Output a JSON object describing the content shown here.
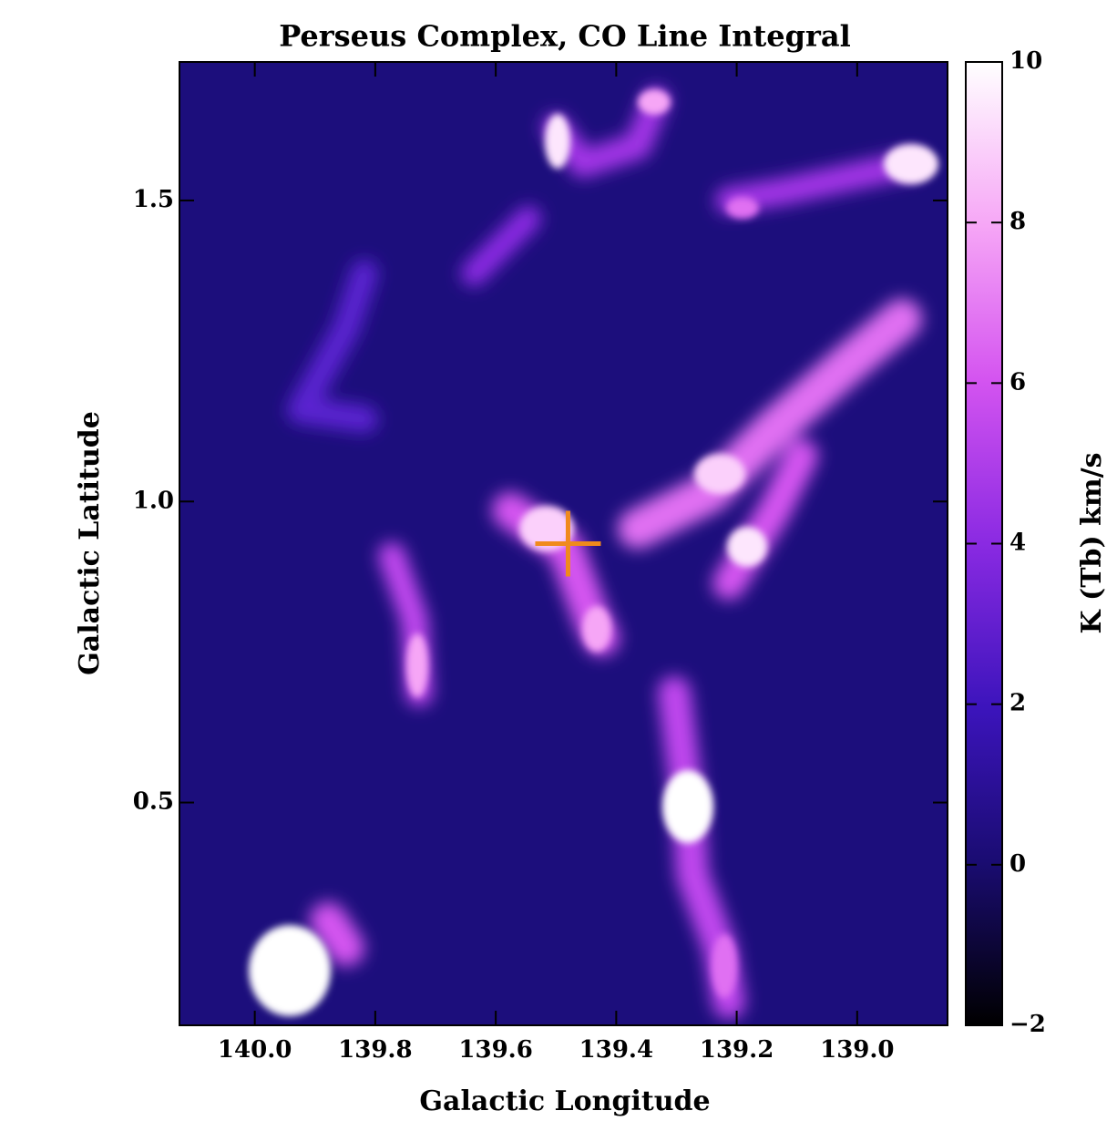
{
  "chart_data": {
    "type": "image-map",
    "title": "Perseus Complex, CO Line Integral",
    "x_label": "Galactic Longitude",
    "y_label": "Galactic Latitude",
    "colorbar_label": "K (Tb) km/s",
    "xlim": [
      140.125,
      138.85
    ],
    "xticks": [
      {
        "value": 140.0,
        "label": "140.0"
      },
      139.8,
      139.6,
      139.4,
      139.2,
      {
        "value": 139.0,
        "label": "139.0"
      }
    ],
    "ylim": [
      0.13,
      1.73
    ],
    "yticks": [
      0.5,
      {
        "value": 1.0,
        "label": "1.0"
      },
      1.5
    ],
    "clim": [
      -2,
      10
    ],
    "cticks": [
      {
        "value": -2,
        "label": "−2"
      },
      0,
      2,
      4,
      6,
      8,
      10
    ],
    "marker": {
      "x": 139.48,
      "y": 0.93,
      "color": "#f08a1c"
    }
  }
}
